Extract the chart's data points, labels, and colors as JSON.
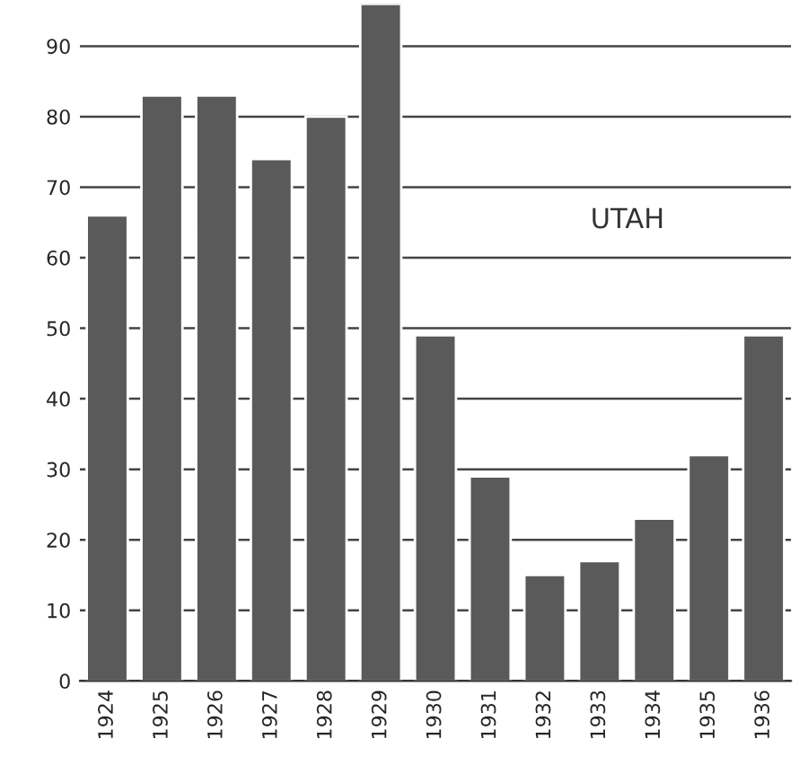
{
  "chart_data": {
    "type": "bar",
    "categories": [
      "1924",
      "1925",
      "1926",
      "1927",
      "1928",
      "1929",
      "1930",
      "1931",
      "1932",
      "1933",
      "1934",
      "1935",
      "1936"
    ],
    "values": [
      66,
      83,
      83,
      74,
      80,
      96,
      49,
      29,
      15,
      17,
      23,
      32,
      49
    ],
    "color": "#5a5a5a",
    "ylim": [
      0,
      96
    ],
    "yticks": [
      0,
      10,
      20,
      30,
      40,
      50,
      60,
      70,
      80,
      90
    ],
    "grid": "y",
    "annotations": [
      "UTAH"
    ]
  }
}
